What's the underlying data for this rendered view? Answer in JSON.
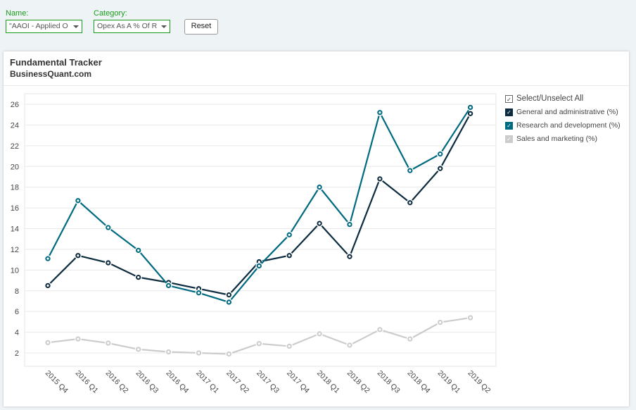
{
  "controls": {
    "name_label": "Name:",
    "name_value": "\"AAOI - Applied O",
    "category_label": "Category:",
    "category_value": "Opex As A % Of R",
    "reset_label": "Reset"
  },
  "chart_data": {
    "type": "line",
    "title": "Fundamental Tracker",
    "subtitle": "BusinessQuant.com",
    "categories": [
      "2015 Q4",
      "2016 Q1",
      "2016 Q2",
      "2016 Q3",
      "2016 Q4",
      "2017 Q1",
      "2017 Q2",
      "2017 Q3",
      "2017 Q4",
      "2018 Q1",
      "2018 Q2",
      "2018 Q3",
      "2018 Q4",
      "2019 Q1",
      "2019 Q2"
    ],
    "yticks": [
      2,
      4,
      6,
      8,
      10,
      12,
      14,
      16,
      18,
      20,
      22,
      24,
      26
    ],
    "ylim": [
      1,
      27
    ],
    "legend_position": "right",
    "select_all_label": "Select/Unselect All",
    "series": [
      {
        "name": "General and administrative (%)",
        "color": "#0d2b3e",
        "enabled": true,
        "values": [
          8.5,
          11.4,
          10.7,
          9.3,
          8.8,
          8.2,
          7.6,
          10.8,
          11.4,
          14.5,
          11.3,
          18.8,
          16.5,
          19.8,
          25.1
        ]
      },
      {
        "name": "Research and development (%)",
        "color": "#006a80",
        "enabled": true,
        "values": [
          11.1,
          16.7,
          14.1,
          11.9,
          8.5,
          7.8,
          6.9,
          10.4,
          13.4,
          18.0,
          14.4,
          25.2,
          19.6,
          21.2,
          25.7
        ]
      },
      {
        "name": "Sales and marketing (%)",
        "color": "#cccccc",
        "enabled": false,
        "values": [
          3.0,
          3.35,
          2.95,
          2.35,
          2.1,
          2.0,
          1.9,
          2.9,
          2.65,
          3.85,
          2.75,
          4.25,
          3.35,
          4.95,
          5.4
        ]
      }
    ]
  }
}
